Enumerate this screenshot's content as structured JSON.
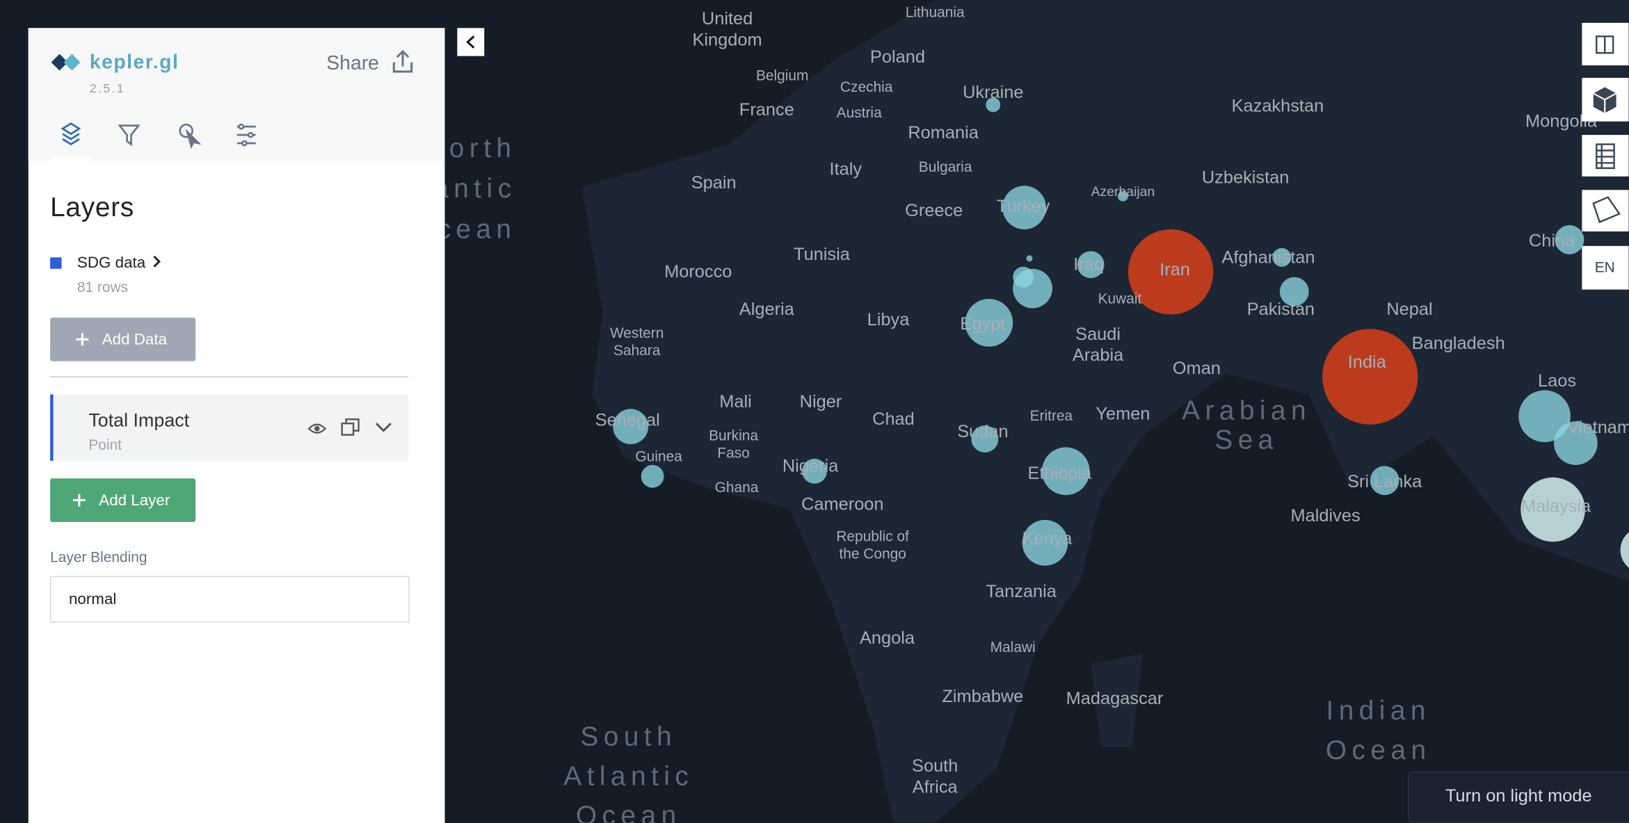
{
  "header": {
    "logo": "kepler.gl",
    "version": "2.5.1",
    "share": "Share"
  },
  "layers_panel": {
    "title": "Layers",
    "dataset": {
      "name": "SDG data",
      "rows": "81 rows"
    },
    "add_data": "Add Data",
    "layer": {
      "name": "Total Impact",
      "type": "Point"
    },
    "add_layer": "Add Layer",
    "blending_label": "Layer Blending",
    "blending_value": "normal"
  },
  "map": {
    "labels": [
      [
        "Lithuania"
      ],
      [
        "United",
        "Kingdom"
      ],
      [
        "Poland"
      ],
      [
        "Belgium"
      ],
      [
        "Czechia"
      ],
      [
        "Ukraine"
      ],
      [
        "Austria"
      ],
      [
        "France"
      ],
      [
        "Kazakhstan"
      ],
      [
        "Mongolia"
      ],
      [
        "Romania"
      ],
      [
        "Italy"
      ],
      [
        "Bulgaria"
      ],
      [
        "Spain"
      ],
      [
        "Uzbekistan"
      ],
      [
        "Azerbaijan"
      ],
      [
        "Turkey"
      ],
      [
        "Greece"
      ],
      [
        "China"
      ],
      [
        "Afghanistan"
      ],
      [
        "Iraq"
      ],
      [
        "Iran"
      ],
      [
        "Tunisia"
      ],
      [
        "Morocco"
      ],
      [
        "Algeria"
      ],
      [
        "Libya"
      ],
      [
        "Kuwait"
      ],
      [
        "Pakistan"
      ],
      [
        "Nepal"
      ],
      [
        "Egypt"
      ],
      [
        "Saudi",
        "Arabia"
      ],
      [
        "Western",
        "Sahara"
      ],
      [
        "Bangladesh"
      ],
      [
        "Oman"
      ],
      [
        "India"
      ],
      [
        "Laos"
      ],
      [
        "Mali"
      ],
      [
        "Niger"
      ],
      [
        "Chad"
      ],
      [
        "Senegal"
      ],
      [
        "Eritrea"
      ],
      [
        "Yemen"
      ],
      [
        "Sudan"
      ],
      [
        "Vietnam"
      ],
      [
        "Burkina",
        "Faso"
      ],
      [
        "Guinea"
      ],
      [
        "Nigeria"
      ],
      [
        "Ethiopia"
      ],
      [
        "Sri Lanka"
      ],
      [
        "Ghana"
      ],
      [
        "Cameroon"
      ],
      [
        "Malaysia"
      ],
      [
        "Maldives"
      ],
      [
        "Republic of",
        "the Congo"
      ],
      [
        "Kenya"
      ],
      [
        "Tanzania"
      ],
      [
        "Angola"
      ],
      [
        "Malawi"
      ],
      [
        "Zimbabwe"
      ],
      [
        "Madagascar"
      ],
      [
        "South",
        "Africa"
      ]
    ],
    "ocean_labels": [
      [
        "North",
        "Atlantic",
        "Ocean"
      ],
      [
        "Arabian",
        "Sea"
      ],
      [
        "Indian",
        "Ocean"
      ],
      [
        "South",
        "Atlantic",
        "Ocean"
      ]
    ],
    "language": "EN",
    "theme_toggle": "Turn on light mode"
  }
}
